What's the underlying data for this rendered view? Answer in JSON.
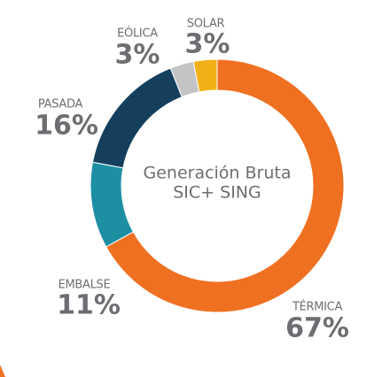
{
  "chart_data": {
    "type": "donut",
    "center_text": [
      "Generación Bruta",
      "SIC+ SING"
    ],
    "categories": [
      "TÉRMICA",
      "EMBALSE",
      "PASADA",
      "EÓLICA",
      "SOLAR"
    ],
    "values": [
      67,
      11,
      16,
      3,
      3
    ],
    "value_labels": [
      "67%",
      "11%",
      "16%",
      "3%",
      "3%"
    ],
    "colors": [
      "#f07022",
      "#1d8fa3",
      "#14405e",
      "#c3c4c6",
      "#f0b117"
    ]
  }
}
